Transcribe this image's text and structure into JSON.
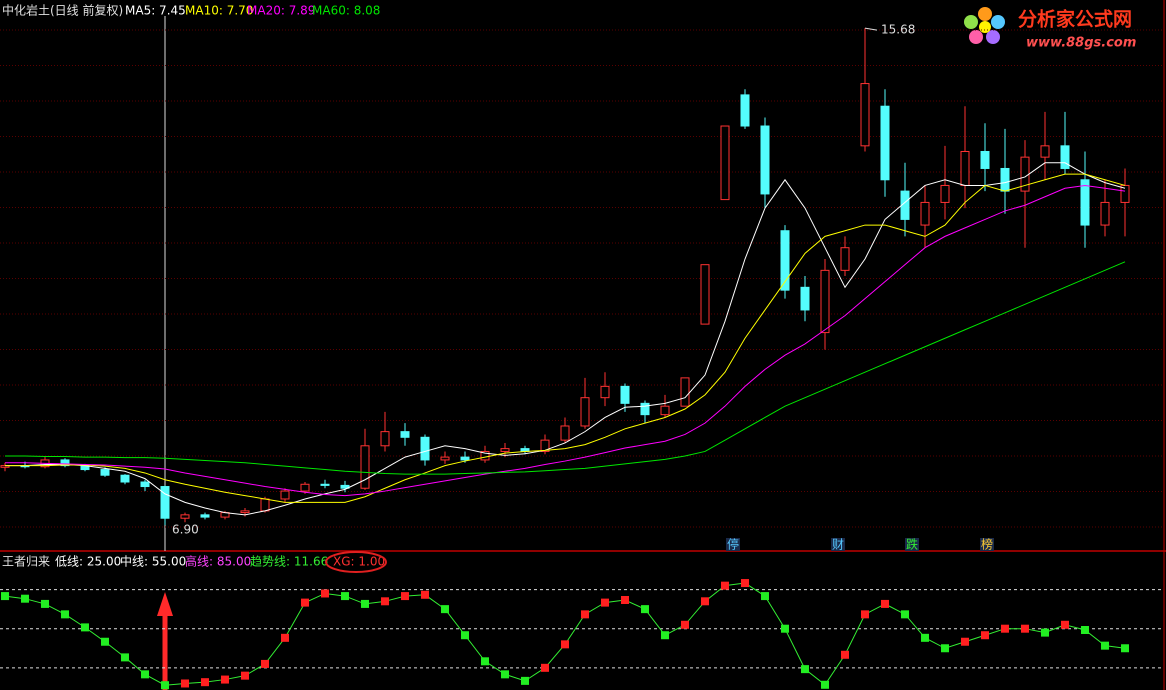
{
  "chart_data": [
    {
      "type": "candlestick",
      "title": "中化岩土(日线 前复权)",
      "up_color": "#ff3232",
      "down_color": "#54fcfc",
      "ylim": [
        6.6,
        16.0
      ],
      "open": [
        7.92,
        7.95,
        7.93,
        8.05,
        7.95,
        7.88,
        7.78,
        7.66,
        7.58,
        7.02,
        7.08,
        7.04,
        7.12,
        7.15,
        7.36,
        7.5,
        7.62,
        7.6,
        7.55,
        8.3,
        8.55,
        8.45,
        8.05,
        8.1,
        8.05,
        8.2,
        8.25,
        8.2,
        8.4,
        8.65,
        9.15,
        9.35,
        9.05,
        8.85,
        9.0,
        10.45,
        12.65,
        14.5,
        13.95,
        12.1,
        11.1,
        10.3,
        11.4,
        13.6,
        14.3,
        12.8,
        12.2,
        12.6,
        12.9,
        13.5,
        13.2,
        12.8,
        13.4,
        13.6,
        13.0,
        12.2,
        12.6
      ],
      "high": [
        8.0,
        8.02,
        8.1,
        8.08,
        7.98,
        7.92,
        7.8,
        7.7,
        7.6,
        7.12,
        7.12,
        7.15,
        7.2,
        7.4,
        7.55,
        7.66,
        7.7,
        7.68,
        8.6,
        8.9,
        8.7,
        8.5,
        8.2,
        8.2,
        8.3,
        8.35,
        8.3,
        8.5,
        8.8,
        9.5,
        9.6,
        9.4,
        9.1,
        9.2,
        9.5,
        11.5,
        13.95,
        14.6,
        14.1,
        12.2,
        11.3,
        11.6,
        12.0,
        15.68,
        14.6,
        13.3,
        12.9,
        13.6,
        14.3,
        14.0,
        13.9,
        13.7,
        14.2,
        14.2,
        13.5,
        13.0,
        13.2
      ],
      "low": [
        7.85,
        7.9,
        7.9,
        7.92,
        7.85,
        7.75,
        7.62,
        7.5,
        6.9,
        6.95,
        7.0,
        7.0,
        7.05,
        7.12,
        7.3,
        7.45,
        7.55,
        7.48,
        7.52,
        8.2,
        8.3,
        7.95,
        7.98,
        8.0,
        8.0,
        8.1,
        8.15,
        8.15,
        8.35,
        8.6,
        9.0,
        8.9,
        8.7,
        8.8,
        9.0,
        10.45,
        12.65,
        13.9,
        12.5,
        10.9,
        10.5,
        10.0,
        11.3,
        13.5,
        12.7,
        12.0,
        11.8,
        12.3,
        12.5,
        12.8,
        12.4,
        11.8,
        13.0,
        13.1,
        11.8,
        12.0,
        12.0
      ],
      "close": [
        7.95,
        7.93,
        8.05,
        7.95,
        7.88,
        7.78,
        7.66,
        7.58,
        7.02,
        7.08,
        7.04,
        7.12,
        7.15,
        7.36,
        7.5,
        7.62,
        7.6,
        7.55,
        8.3,
        8.55,
        8.45,
        8.05,
        8.1,
        8.05,
        8.2,
        8.25,
        8.2,
        8.4,
        8.65,
        9.15,
        9.35,
        9.05,
        8.85,
        9.0,
        9.5,
        11.5,
        13.95,
        13.95,
        12.75,
        11.05,
        10.7,
        11.4,
        11.8,
        14.7,
        13.0,
        12.3,
        12.6,
        12.9,
        13.5,
        13.2,
        12.8,
        13.4,
        13.6,
        13.2,
        12.2,
        12.6,
        12.9
      ],
      "series": [
        {
          "name": "MA5: 7.45",
          "color": "#ffffff",
          "values": [
            7.95,
            7.95,
            7.97,
            7.97,
            7.95,
            7.9,
            7.85,
            7.72,
            7.45,
            7.3,
            7.2,
            7.12,
            7.08,
            7.15,
            7.25,
            7.36,
            7.45,
            7.53,
            7.7,
            7.9,
            8.1,
            8.2,
            8.3,
            8.25,
            8.17,
            8.13,
            8.16,
            8.22,
            8.35,
            8.55,
            8.8,
            8.98,
            9.0,
            9.05,
            9.15,
            9.55,
            10.5,
            11.6,
            12.5,
            13.0,
            12.5,
            11.8,
            11.1,
            11.6,
            12.3,
            12.6,
            12.9,
            13.0,
            12.9,
            12.9,
            12.95,
            13.05,
            13.3,
            13.3,
            13.1,
            12.95,
            12.85
          ]
        },
        {
          "name": "MA10: 7.70",
          "color": "#ffff00",
          "values": [
            7.95,
            7.95,
            7.95,
            7.96,
            7.96,
            7.94,
            7.9,
            7.82,
            7.7,
            7.62,
            7.55,
            7.48,
            7.42,
            7.36,
            7.3,
            7.3,
            7.3,
            7.3,
            7.4,
            7.55,
            7.7,
            7.82,
            7.95,
            8.03,
            8.1,
            8.17,
            8.2,
            8.22,
            8.25,
            8.32,
            8.45,
            8.6,
            8.7,
            8.8,
            8.95,
            9.2,
            9.6,
            10.2,
            10.7,
            11.2,
            11.7,
            12.0,
            12.1,
            12.2,
            12.2,
            12.1,
            12.0,
            12.2,
            12.6,
            12.9,
            12.8,
            12.9,
            13.0,
            13.1,
            13.1,
            13.0,
            12.9
          ]
        },
        {
          "name": "MA20: 7.89",
          "color": "#ff00ff",
          "values": [
            8.0,
            8.0,
            7.99,
            7.98,
            7.97,
            7.96,
            7.94,
            7.92,
            7.89,
            7.82,
            7.76,
            7.7,
            7.64,
            7.58,
            7.53,
            7.48,
            7.44,
            7.42,
            7.45,
            7.5,
            7.56,
            7.62,
            7.68,
            7.74,
            7.8,
            7.85,
            7.9,
            7.97,
            8.03,
            8.1,
            8.18,
            8.26,
            8.32,
            8.38,
            8.5,
            8.7,
            9.0,
            9.35,
            9.65,
            9.9,
            10.1,
            10.35,
            10.6,
            10.9,
            11.2,
            11.5,
            11.8,
            12.0,
            12.15,
            12.3,
            12.45,
            12.55,
            12.7,
            12.85,
            12.9,
            12.85,
            12.8
          ]
        },
        {
          "name": "MA60: 8.08",
          "color": "#00e600",
          "values": [
            8.12,
            8.12,
            8.11,
            8.11,
            8.1,
            8.1,
            8.09,
            8.09,
            8.08,
            8.06,
            8.04,
            8.02,
            8.0,
            7.97,
            7.94,
            7.91,
            7.88,
            7.85,
            7.83,
            7.81,
            7.8,
            7.8,
            7.8,
            7.81,
            7.82,
            7.83,
            7.84,
            7.86,
            7.88,
            7.9,
            7.94,
            7.98,
            8.02,
            8.06,
            8.12,
            8.2,
            8.4,
            8.6,
            8.8,
            9.0,
            9.15,
            9.3,
            9.45,
            9.6,
            9.75,
            9.9,
            10.05,
            10.2,
            10.35,
            10.5,
            10.65,
            10.8,
            10.95,
            11.1,
            11.25,
            11.4,
            11.55
          ]
        }
      ],
      "annotations": [
        "15.68",
        "6.90"
      ],
      "events": [
        "停",
        "财",
        "跌",
        "榜"
      ]
    },
    {
      "type": "line",
      "title": "王者归来",
      "ylim": [
        8,
        100
      ],
      "up_color": "#ff2020",
      "down_color": "#22ee22",
      "reference_lines": [
        {
          "name": "低线: 25.00",
          "value": 25,
          "color": "#ffffff"
        },
        {
          "name": "中线: 55.00",
          "value": 55,
          "color": "#ffffff"
        },
        {
          "name": "高线: 85.00",
          "value": 85,
          "color": "#ff44ff"
        }
      ],
      "series": [
        {
          "name": "趋势线: 11.66",
          "color": "#33ee33",
          "values": [
            80,
            78,
            74,
            66,
            56,
            45,
            33,
            20,
            11.66,
            13,
            14,
            16,
            19,
            28,
            48,
            75,
            82,
            80,
            74,
            76,
            80,
            81,
            70,
            50,
            30,
            20,
            15,
            25,
            43,
            66,
            75,
            77,
            70,
            50,
            58,
            76,
            88,
            90,
            80,
            55,
            24,
            12,
            35,
            66,
            74,
            66,
            48,
            40,
            45,
            50,
            55,
            55,
            52,
            58,
            54,
            42,
            40
          ]
        }
      ],
      "signal": "XG: 1.00"
    }
  ],
  "logo": {
    "title": "分析家公式网",
    "url": "www.88gs.com"
  }
}
